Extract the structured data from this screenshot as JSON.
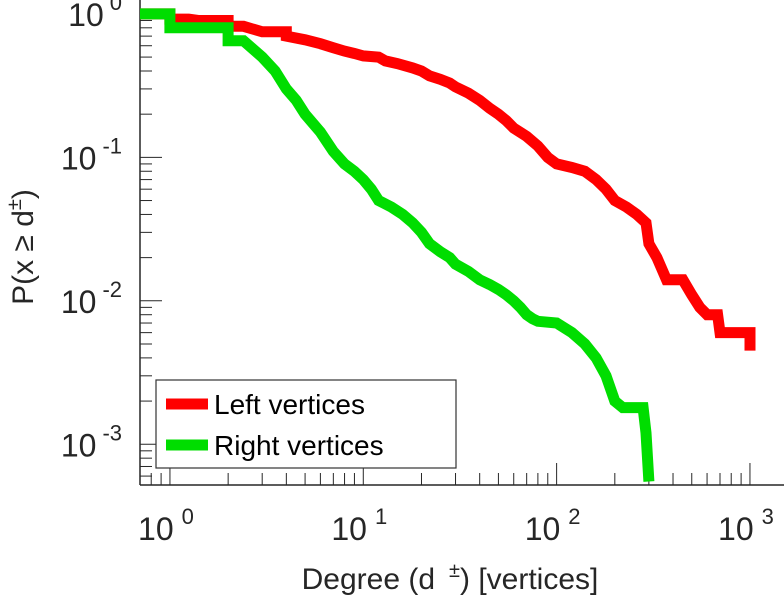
{
  "chart_data": {
    "type": "line",
    "title": "",
    "xlabel": {
      "main": "Degree (d",
      "sup": "±",
      "rest": ") [vertices]"
    },
    "ylabel": {
      "main": "P(x ≥ d",
      "sup": "±",
      "rest": ")"
    },
    "xscale": "log",
    "yscale": "log",
    "xlim": [
      0.7,
      1500
    ],
    "ylim": [
      0.00052,
      1.25
    ],
    "grid": false,
    "legend_position": "bottom-left",
    "x_ticks": [
      {
        "base": "10",
        "exp": "0",
        "value": 1
      },
      {
        "base": "10",
        "exp": "1",
        "value": 10
      },
      {
        "base": "10",
        "exp": "2",
        "value": 100
      },
      {
        "base": "10",
        "exp": "3",
        "value": 1000
      }
    ],
    "y_ticks": [
      {
        "base": "10",
        "exp": "0",
        "value": 1
      },
      {
        "base": "10",
        "exp": "-1",
        "value": 0.1
      },
      {
        "base": "10",
        "exp": "-2",
        "value": 0.01
      },
      {
        "base": "10",
        "exp": "-3",
        "value": 0.001
      }
    ],
    "series": [
      {
        "name": "Left vertices",
        "color": "#ff0000",
        "points": [
          [
            0.7,
            1.0
          ],
          [
            1,
            1.0
          ],
          [
            1,
            0.92
          ],
          [
            1.1,
            0.92
          ],
          [
            1.25,
            0.92
          ],
          [
            1.4,
            0.9
          ],
          [
            1.6,
            0.9
          ],
          [
            2,
            0.9
          ],
          [
            2,
            0.82
          ],
          [
            2.4,
            0.82
          ],
          [
            3,
            0.75
          ],
          [
            4,
            0.75
          ],
          [
            4,
            0.7
          ],
          [
            5,
            0.66
          ],
          [
            6,
            0.62
          ],
          [
            7,
            0.58
          ],
          [
            8,
            0.55
          ],
          [
            9,
            0.53
          ],
          [
            10,
            0.51
          ],
          [
            12,
            0.5
          ],
          [
            13,
            0.47
          ],
          [
            15,
            0.45
          ],
          [
            18,
            0.42
          ],
          [
            20,
            0.4
          ],
          [
            22,
            0.37
          ],
          [
            25,
            0.35
          ],
          [
            28,
            0.33
          ],
          [
            30,
            0.31
          ],
          [
            35,
            0.28
          ],
          [
            40,
            0.25
          ],
          [
            45,
            0.22
          ],
          [
            50,
            0.2
          ],
          [
            55,
            0.18
          ],
          [
            60,
            0.16
          ],
          [
            70,
            0.14
          ],
          [
            80,
            0.12
          ],
          [
            90,
            0.1
          ],
          [
            100,
            0.09
          ],
          [
            120,
            0.085
          ],
          [
            140,
            0.08
          ],
          [
            160,
            0.07
          ],
          [
            180,
            0.06
          ],
          [
            200,
            0.05
          ],
          [
            230,
            0.045
          ],
          [
            260,
            0.04
          ],
          [
            290,
            0.035
          ],
          [
            300,
            0.025
          ],
          [
            330,
            0.02
          ],
          [
            370,
            0.014
          ],
          [
            450,
            0.014
          ],
          [
            500,
            0.011
          ],
          [
            550,
            0.009
          ],
          [
            600,
            0.008
          ],
          [
            680,
            0.008
          ],
          [
            700,
            0.006
          ],
          [
            800,
            0.006
          ],
          [
            1000,
            0.006
          ],
          [
            1000,
            0.0045
          ]
        ]
      },
      {
        "name": "Right vertices",
        "color": "#00dd00",
        "points": [
          [
            0.7,
            1.0
          ],
          [
            1,
            1.0
          ],
          [
            1,
            0.8
          ],
          [
            1.2,
            0.8
          ],
          [
            1.6,
            0.8
          ],
          [
            2,
            0.8
          ],
          [
            2,
            0.65
          ],
          [
            2.4,
            0.65
          ],
          [
            3,
            0.5
          ],
          [
            3.5,
            0.4
          ],
          [
            4,
            0.3
          ],
          [
            4.5,
            0.25
          ],
          [
            5,
            0.2
          ],
          [
            6,
            0.15
          ],
          [
            7,
            0.11
          ],
          [
            8,
            0.09
          ],
          [
            9,
            0.08
          ],
          [
            10,
            0.07
          ],
          [
            11,
            0.06
          ],
          [
            12,
            0.05
          ],
          [
            14,
            0.045
          ],
          [
            16,
            0.04
          ],
          [
            18,
            0.035
          ],
          [
            20,
            0.03
          ],
          [
            22,
            0.025
          ],
          [
            25,
            0.022
          ],
          [
            28,
            0.02
          ],
          [
            30,
            0.018
          ],
          [
            35,
            0.016
          ],
          [
            40,
            0.014
          ],
          [
            45,
            0.013
          ],
          [
            50,
            0.012
          ],
          [
            55,
            0.011
          ],
          [
            60,
            0.01
          ],
          [
            65,
            0.009
          ],
          [
            70,
            0.008
          ],
          [
            75,
            0.0075
          ],
          [
            80,
            0.0072
          ],
          [
            100,
            0.007
          ],
          [
            120,
            0.006
          ],
          [
            140,
            0.005
          ],
          [
            160,
            0.004
          ],
          [
            180,
            0.003
          ],
          [
            200,
            0.002
          ],
          [
            220,
            0.0018
          ],
          [
            250,
            0.0018
          ],
          [
            280,
            0.0018
          ],
          [
            290,
            0.0012
          ],
          [
            300,
            0.00055
          ]
        ]
      }
    ]
  }
}
